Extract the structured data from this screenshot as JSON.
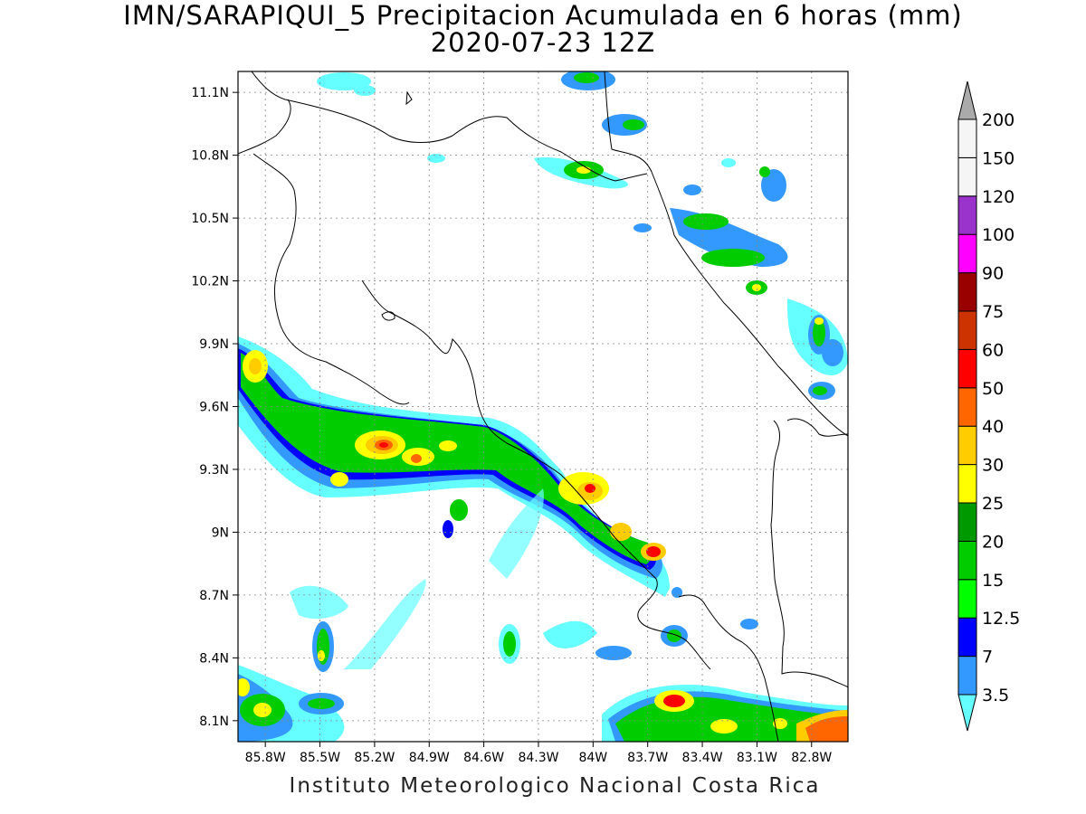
{
  "title": {
    "line1": "IMN/SARAPIQUI_5 Precipitacion Acumulada en 6 horas (mm)",
    "line2": "2020-07-23 12Z"
  },
  "credit": "Instituto Meteorologico Nacional Costa Rica",
  "map": {
    "lon_range": [
      -85.95,
      -82.6
    ],
    "lat_range": [
      8.0,
      11.2
    ],
    "lon_ticks": [
      "85.8W",
      "85.5W",
      "85.2W",
      "84.9W",
      "84.6W",
      "84.3W",
      "84W",
      "83.7W",
      "83.4W",
      "83.1W",
      "82.8W"
    ],
    "lat_ticks": [
      "8.1N",
      "8.4N",
      "8.7N",
      "9N",
      "9.3N",
      "9.6N",
      "9.9N",
      "10.2N",
      "10.5N",
      "10.8N",
      "11.1N"
    ],
    "grid": true
  },
  "colorbar": {
    "labels": [
      "3.5",
      "7",
      "12.5",
      "15",
      "20",
      "25",
      "30",
      "40",
      "50",
      "60",
      "75",
      "90",
      "100",
      "120",
      "150",
      "200"
    ],
    "colors": [
      "#66ffff",
      "#3399ff",
      "#0000ff",
      "#00ff00",
      "#00cc00",
      "#009900",
      "#ffff00",
      "#ffcc00",
      "#ff6600",
      "#ff0000",
      "#cc3300",
      "#990000",
      "#ff00ff",
      "#9933cc",
      "#f5f5f5",
      "#aaaaaa"
    ]
  }
}
